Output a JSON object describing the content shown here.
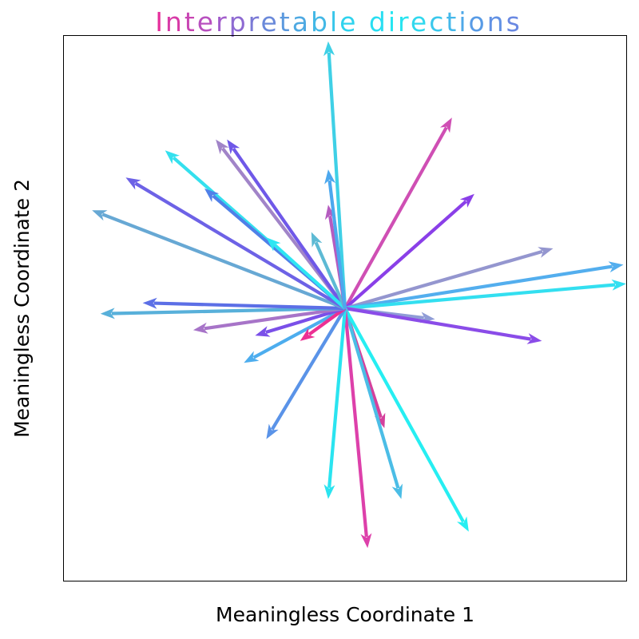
{
  "chart_data": {
    "type": "vector-field",
    "title": "Interpretable directions",
    "title_colors": [
      "#e62e9b",
      "#d83aa7",
      "#c845b3",
      "#b850bf",
      "#a25ccb",
      "#8e6ad2",
      "#7a79d6",
      "#6a89da",
      "#5b99de",
      "#4ea9e2",
      "#43b8e6",
      "#38c6ea",
      "#2fd3ee",
      "#29def2",
      "#26e6f2",
      "#28e4f0",
      "#30d8ee",
      "#3ac8ec",
      "#44b8ea",
      "#4ea8e8",
      "#589be6",
      "#6191e4",
      "#6a89e2"
    ],
    "xlabel": "Meaningless Coordinate 1",
    "ylabel": "Meaningless Coordinate 2",
    "xlim": [
      -1,
      1
    ],
    "ylim": [
      -1,
      1
    ],
    "grid": false,
    "ticks": false,
    "origin": [
      0,
      0
    ],
    "vectors": [
      {
        "dx": -0.06,
        "dy": 0.98,
        "color": "#3fd0e6"
      },
      {
        "dx": 0.38,
        "dy": 0.7,
        "color": "#cf4fb4"
      },
      {
        "dx": 0.46,
        "dy": 0.42,
        "color": "#8a3fe8"
      },
      {
        "dx": 0.74,
        "dy": 0.22,
        "color": "#9496cf"
      },
      {
        "dx": 0.99,
        "dy": 0.16,
        "color": "#53aeee"
      },
      {
        "dx": 1.0,
        "dy": 0.09,
        "color": "#33dff0"
      },
      {
        "dx": 0.32,
        "dy": -0.04,
        "color": "#8f9cd6"
      },
      {
        "dx": 0.7,
        "dy": -0.12,
        "color": "#8a4ce8"
      },
      {
        "dx": 0.14,
        "dy": -0.44,
        "color": "#d4409c"
      },
      {
        "dx": 0.2,
        "dy": -0.7,
        "color": "#4bbde6"
      },
      {
        "dx": 0.44,
        "dy": -0.82,
        "color": "#26eef2"
      },
      {
        "dx": 0.08,
        "dy": -0.88,
        "color": "#dd40aa"
      },
      {
        "dx": -0.06,
        "dy": -0.7,
        "color": "#2ae4f0"
      },
      {
        "dx": -0.28,
        "dy": -0.48,
        "color": "#5a93e8"
      },
      {
        "dx": -0.36,
        "dy": -0.2,
        "color": "#4dadee"
      },
      {
        "dx": -0.16,
        "dy": -0.12,
        "color": "#ec3093"
      },
      {
        "dx": -0.32,
        "dy": -0.1,
        "color": "#7a4fe8"
      },
      {
        "dx": -0.54,
        "dy": -0.08,
        "color": "#a774c8"
      },
      {
        "dx": -0.87,
        "dy": -0.02,
        "color": "#58b0da"
      },
      {
        "dx": -0.72,
        "dy": 0.02,
        "color": "#5c6fe6"
      },
      {
        "dx": -0.9,
        "dy": 0.36,
        "color": "#67a8d4"
      },
      {
        "dx": -0.78,
        "dy": 0.48,
        "color": "#6d62e6"
      },
      {
        "dx": -0.64,
        "dy": 0.58,
        "color": "#34e0ee"
      },
      {
        "dx": -0.5,
        "dy": 0.44,
        "color": "#4f80e8"
      },
      {
        "dx": -0.46,
        "dy": 0.62,
        "color": "#a184c8"
      },
      {
        "dx": -0.42,
        "dy": 0.62,
        "color": "#6f58e8"
      },
      {
        "dx": -0.28,
        "dy": 0.26,
        "color": "#2ee6f2"
      },
      {
        "dx": -0.12,
        "dy": 0.28,
        "color": "#5dbad4"
      },
      {
        "dx": -0.06,
        "dy": 0.38,
        "color": "#b55cc0"
      },
      {
        "dx": -0.06,
        "dy": 0.51,
        "color": "#4ca8ee"
      }
    ]
  }
}
